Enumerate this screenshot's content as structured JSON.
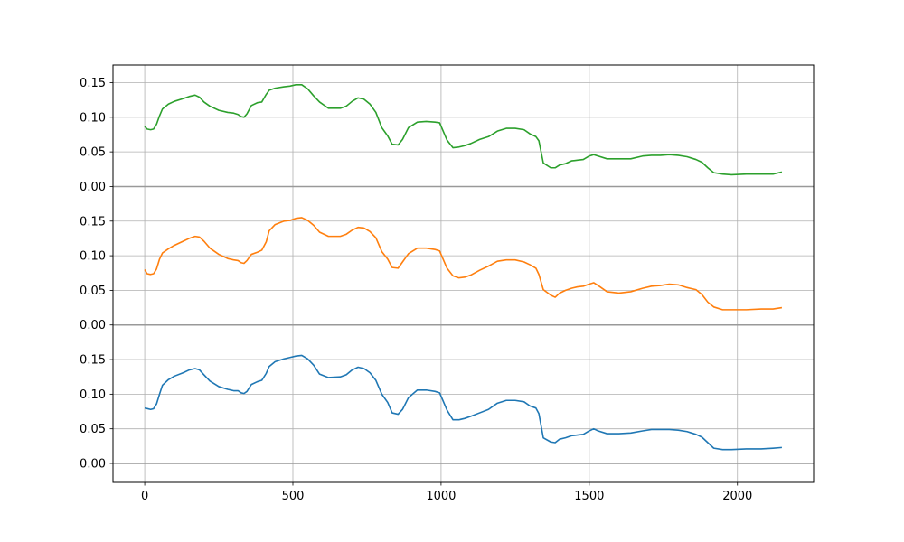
{
  "chart_data": {
    "type": "line",
    "title": "",
    "xlabel": "",
    "ylabel": "",
    "xlim": [
      -107,
      2257
    ],
    "xticks": [
      0,
      500,
      1000,
      1500,
      2000
    ],
    "grid": true,
    "yticks_per_band": [
      0.0,
      0.05,
      0.1,
      0.15
    ],
    "band_span": 0.2,
    "series": [
      {
        "color": "#1f77b4",
        "offset": 0.0,
        "points": [
          [
            0,
            0.08
          ],
          [
            10,
            0.079
          ],
          [
            20,
            0.078
          ],
          [
            30,
            0.079
          ],
          [
            40,
            0.086
          ],
          [
            50,
            0.1
          ],
          [
            60,
            0.113
          ],
          [
            80,
            0.121
          ],
          [
            100,
            0.126
          ],
          [
            130,
            0.131
          ],
          [
            150,
            0.135
          ],
          [
            170,
            0.137
          ],
          [
            185,
            0.135
          ],
          [
            200,
            0.128
          ],
          [
            220,
            0.119
          ],
          [
            250,
            0.111
          ],
          [
            280,
            0.107
          ],
          [
            300,
            0.105
          ],
          [
            315,
            0.105
          ],
          [
            325,
            0.102
          ],
          [
            335,
            0.101
          ],
          [
            345,
            0.104
          ],
          [
            360,
            0.114
          ],
          [
            380,
            0.118
          ],
          [
            395,
            0.12
          ],
          [
            410,
            0.13
          ],
          [
            420,
            0.14
          ],
          [
            440,
            0.147
          ],
          [
            470,
            0.151
          ],
          [
            490,
            0.153
          ],
          [
            510,
            0.155
          ],
          [
            530,
            0.156
          ],
          [
            550,
            0.151
          ],
          [
            570,
            0.142
          ],
          [
            590,
            0.129
          ],
          [
            620,
            0.124
          ],
          [
            660,
            0.125
          ],
          [
            680,
            0.128
          ],
          [
            700,
            0.135
          ],
          [
            720,
            0.139
          ],
          [
            740,
            0.137
          ],
          [
            760,
            0.131
          ],
          [
            780,
            0.12
          ],
          [
            800,
            0.1
          ],
          [
            820,
            0.088
          ],
          [
            835,
            0.073
          ],
          [
            855,
            0.071
          ],
          [
            870,
            0.078
          ],
          [
            890,
            0.095
          ],
          [
            920,
            0.106
          ],
          [
            950,
            0.106
          ],
          [
            980,
            0.104
          ],
          [
            995,
            0.102
          ],
          [
            1005,
            0.092
          ],
          [
            1020,
            0.077
          ],
          [
            1040,
            0.063
          ],
          [
            1060,
            0.063
          ],
          [
            1080,
            0.065
          ],
          [
            1100,
            0.068
          ],
          [
            1130,
            0.073
          ],
          [
            1160,
            0.078
          ],
          [
            1190,
            0.087
          ],
          [
            1220,
            0.091
          ],
          [
            1250,
            0.091
          ],
          [
            1280,
            0.089
          ],
          [
            1300,
            0.083
          ],
          [
            1320,
            0.08
          ],
          [
            1330,
            0.072
          ],
          [
            1345,
            0.037
          ],
          [
            1370,
            0.031
          ],
          [
            1385,
            0.03
          ],
          [
            1400,
            0.035
          ],
          [
            1420,
            0.037
          ],
          [
            1440,
            0.04
          ],
          [
            1460,
            0.041
          ],
          [
            1480,
            0.042
          ],
          [
            1500,
            0.047
          ],
          [
            1515,
            0.05
          ],
          [
            1530,
            0.047
          ],
          [
            1560,
            0.043
          ],
          [
            1600,
            0.043
          ],
          [
            1640,
            0.044
          ],
          [
            1680,
            0.047
          ],
          [
            1710,
            0.049
          ],
          [
            1740,
            0.049
          ],
          [
            1770,
            0.049
          ],
          [
            1800,
            0.048
          ],
          [
            1830,
            0.046
          ],
          [
            1860,
            0.042
          ],
          [
            1880,
            0.038
          ],
          [
            1900,
            0.03
          ],
          [
            1920,
            0.022
          ],
          [
            1950,
            0.02
          ],
          [
            1980,
            0.02
          ],
          [
            2030,
            0.021
          ],
          [
            2080,
            0.021
          ],
          [
            2120,
            0.022
          ],
          [
            2150,
            0.023
          ]
        ]
      },
      {
        "color": "#ff7f0e",
        "offset": 0.2,
        "points": [
          [
            0,
            0.08
          ],
          [
            8,
            0.074
          ],
          [
            20,
            0.073
          ],
          [
            30,
            0.074
          ],
          [
            40,
            0.081
          ],
          [
            50,
            0.095
          ],
          [
            60,
            0.104
          ],
          [
            80,
            0.11
          ],
          [
            100,
            0.115
          ],
          [
            130,
            0.121
          ],
          [
            150,
            0.125
          ],
          [
            170,
            0.128
          ],
          [
            185,
            0.127
          ],
          [
            200,
            0.121
          ],
          [
            220,
            0.111
          ],
          [
            250,
            0.102
          ],
          [
            280,
            0.096
          ],
          [
            300,
            0.094
          ],
          [
            315,
            0.093
          ],
          [
            325,
            0.09
          ],
          [
            335,
            0.089
          ],
          [
            345,
            0.093
          ],
          [
            360,
            0.102
          ],
          [
            380,
            0.105
          ],
          [
            395,
            0.108
          ],
          [
            410,
            0.12
          ],
          [
            420,
            0.136
          ],
          [
            440,
            0.145
          ],
          [
            470,
            0.15
          ],
          [
            490,
            0.151
          ],
          [
            510,
            0.154
          ],
          [
            530,
            0.155
          ],
          [
            550,
            0.151
          ],
          [
            570,
            0.144
          ],
          [
            590,
            0.134
          ],
          [
            620,
            0.128
          ],
          [
            660,
            0.128
          ],
          [
            680,
            0.131
          ],
          [
            700,
            0.137
          ],
          [
            720,
            0.141
          ],
          [
            740,
            0.14
          ],
          [
            760,
            0.135
          ],
          [
            780,
            0.126
          ],
          [
            800,
            0.106
          ],
          [
            820,
            0.095
          ],
          [
            835,
            0.083
          ],
          [
            855,
            0.082
          ],
          [
            870,
            0.091
          ],
          [
            890,
            0.103
          ],
          [
            920,
            0.111
          ],
          [
            950,
            0.111
          ],
          [
            980,
            0.109
          ],
          [
            995,
            0.107
          ],
          [
            1005,
            0.097
          ],
          [
            1020,
            0.082
          ],
          [
            1040,
            0.071
          ],
          [
            1060,
            0.068
          ],
          [
            1080,
            0.069
          ],
          [
            1100,
            0.072
          ],
          [
            1130,
            0.079
          ],
          [
            1160,
            0.085
          ],
          [
            1190,
            0.092
          ],
          [
            1220,
            0.094
          ],
          [
            1250,
            0.094
          ],
          [
            1280,
            0.091
          ],
          [
            1300,
            0.087
          ],
          [
            1320,
            0.082
          ],
          [
            1330,
            0.073
          ],
          [
            1345,
            0.051
          ],
          [
            1370,
            0.043
          ],
          [
            1385,
            0.04
          ],
          [
            1400,
            0.046
          ],
          [
            1420,
            0.05
          ],
          [
            1440,
            0.053
          ],
          [
            1460,
            0.055
          ],
          [
            1480,
            0.056
          ],
          [
            1500,
            0.059
          ],
          [
            1515,
            0.061
          ],
          [
            1530,
            0.057
          ],
          [
            1560,
            0.048
          ],
          [
            1600,
            0.046
          ],
          [
            1640,
            0.048
          ],
          [
            1680,
            0.053
          ],
          [
            1710,
            0.056
          ],
          [
            1740,
            0.057
          ],
          [
            1770,
            0.059
          ],
          [
            1800,
            0.058
          ],
          [
            1830,
            0.054
          ],
          [
            1860,
            0.051
          ],
          [
            1880,
            0.044
          ],
          [
            1900,
            0.033
          ],
          [
            1920,
            0.026
          ],
          [
            1950,
            0.022
          ],
          [
            1980,
            0.022
          ],
          [
            2030,
            0.022
          ],
          [
            2080,
            0.023
          ],
          [
            2120,
            0.023
          ],
          [
            2150,
            0.025
          ]
        ]
      },
      {
        "color": "#2ca02c",
        "offset": 0.4,
        "points": [
          [
            0,
            0.087
          ],
          [
            8,
            0.083
          ],
          [
            20,
            0.082
          ],
          [
            30,
            0.083
          ],
          [
            40,
            0.09
          ],
          [
            50,
            0.102
          ],
          [
            60,
            0.112
          ],
          [
            80,
            0.119
          ],
          [
            100,
            0.123
          ],
          [
            130,
            0.127
          ],
          [
            150,
            0.13
          ],
          [
            170,
            0.132
          ],
          [
            185,
            0.129
          ],
          [
            200,
            0.122
          ],
          [
            220,
            0.116
          ],
          [
            250,
            0.11
          ],
          [
            280,
            0.107
          ],
          [
            300,
            0.106
          ],
          [
            315,
            0.104
          ],
          [
            325,
            0.101
          ],
          [
            335,
            0.1
          ],
          [
            345,
            0.105
          ],
          [
            360,
            0.117
          ],
          [
            380,
            0.121
          ],
          [
            395,
            0.122
          ],
          [
            410,
            0.133
          ],
          [
            420,
            0.139
          ],
          [
            440,
            0.142
          ],
          [
            470,
            0.144
          ],
          [
            490,
            0.145
          ],
          [
            510,
            0.147
          ],
          [
            530,
            0.147
          ],
          [
            550,
            0.141
          ],
          [
            570,
            0.131
          ],
          [
            590,
            0.122
          ],
          [
            620,
            0.113
          ],
          [
            660,
            0.113
          ],
          [
            680,
            0.116
          ],
          [
            700,
            0.123
          ],
          [
            720,
            0.128
          ],
          [
            740,
            0.126
          ],
          [
            760,
            0.119
          ],
          [
            780,
            0.107
          ],
          [
            800,
            0.085
          ],
          [
            820,
            0.073
          ],
          [
            835,
            0.061
          ],
          [
            855,
            0.06
          ],
          [
            870,
            0.068
          ],
          [
            890,
            0.085
          ],
          [
            920,
            0.093
          ],
          [
            950,
            0.094
          ],
          [
            980,
            0.093
          ],
          [
            995,
            0.092
          ],
          [
            1005,
            0.082
          ],
          [
            1020,
            0.067
          ],
          [
            1040,
            0.056
          ],
          [
            1060,
            0.057
          ],
          [
            1080,
            0.059
          ],
          [
            1100,
            0.062
          ],
          [
            1130,
            0.068
          ],
          [
            1160,
            0.072
          ],
          [
            1190,
            0.08
          ],
          [
            1220,
            0.084
          ],
          [
            1250,
            0.084
          ],
          [
            1280,
            0.082
          ],
          [
            1300,
            0.076
          ],
          [
            1320,
            0.072
          ],
          [
            1330,
            0.066
          ],
          [
            1345,
            0.034
          ],
          [
            1370,
            0.027
          ],
          [
            1385,
            0.027
          ],
          [
            1400,
            0.031
          ],
          [
            1420,
            0.033
          ],
          [
            1440,
            0.037
          ],
          [
            1460,
            0.038
          ],
          [
            1480,
            0.039
          ],
          [
            1500,
            0.044
          ],
          [
            1515,
            0.046
          ],
          [
            1530,
            0.044
          ],
          [
            1560,
            0.04
          ],
          [
            1600,
            0.04
          ],
          [
            1640,
            0.04
          ],
          [
            1680,
            0.044
          ],
          [
            1710,
            0.045
          ],
          [
            1740,
            0.045
          ],
          [
            1770,
            0.046
          ],
          [
            1800,
            0.045
          ],
          [
            1830,
            0.043
          ],
          [
            1860,
            0.039
          ],
          [
            1880,
            0.035
          ],
          [
            1900,
            0.027
          ],
          [
            1920,
            0.02
          ],
          [
            1950,
            0.018
          ],
          [
            1980,
            0.017
          ],
          [
            2030,
            0.018
          ],
          [
            2080,
            0.018
          ],
          [
            2120,
            0.018
          ],
          [
            2150,
            0.021
          ]
        ]
      }
    ]
  }
}
